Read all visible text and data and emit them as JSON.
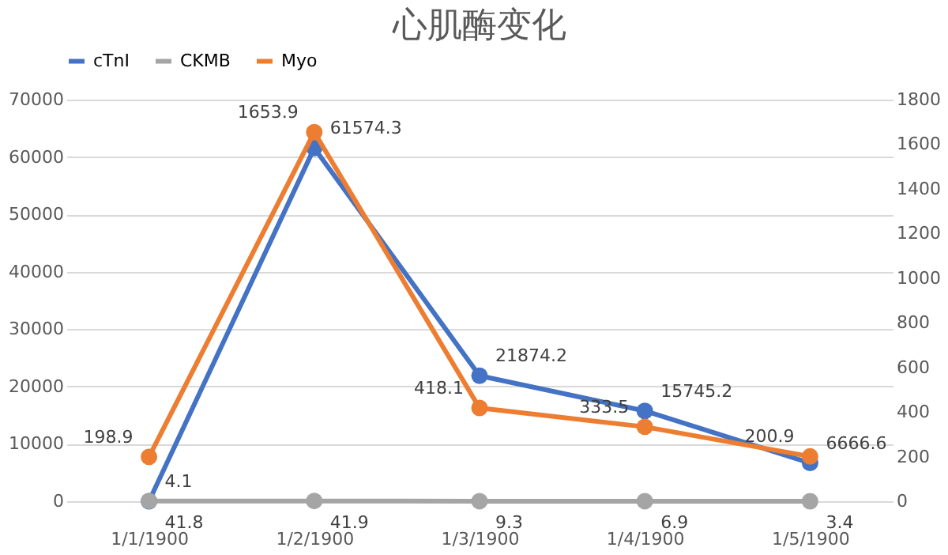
{
  "chart_data": {
    "type": "line",
    "title": "心肌酶变化",
    "categories": [
      "1/1/1900",
      "1/2/1900",
      "1/3/1900",
      "1/4/1900",
      "1/5/1900"
    ],
    "series": [
      {
        "name": "cTnI",
        "color": "#4472c4",
        "values": [
          4.1,
          61574.3,
          21874.2,
          15745.2,
          6666.6
        ]
      },
      {
        "name": "CKMB",
        "color": "#a5a5a5",
        "values": [
          41.8,
          41.9,
          9.3,
          6.9,
          3.4
        ]
      },
      {
        "name": "Myo",
        "color": "#ed7d31",
        "values": [
          198.9,
          1653.9,
          418.1,
          333.5,
          200.9
        ],
        "axis": "y2"
      }
    ],
    "ylim": [
      0,
      70000
    ],
    "yticks": [
      0,
      10000,
      20000,
      30000,
      40000,
      50000,
      60000,
      70000
    ],
    "y2lim": [
      0,
      1800
    ],
    "y2ticks": [
      0,
      200,
      400,
      600,
      800,
      1000,
      1200,
      1400,
      1600,
      1800
    ],
    "data_labels": true,
    "grid": "y",
    "legend": "top",
    "marker": "circle",
    "line_style": "solid"
  }
}
